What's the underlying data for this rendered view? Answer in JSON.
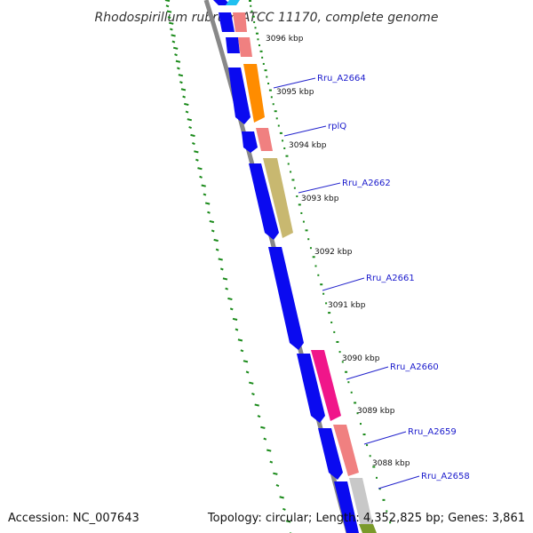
{
  "title": "Rhodospirillum rubrum ATCC 11170, complete genome",
  "footer": {
    "accession": "Accession: NC_007643",
    "summary": "Topology: circular; Length: 4,352,825 bp; Genes: 3,861"
  },
  "colors": {
    "backbone": "#888888",
    "forward_cds": "#0a0af0",
    "gc_skew_dashes": "#1a8a1a",
    "label_line": "#2222cc",
    "tick_dots": "#1a8a1a"
  },
  "kbp_ticks": [
    {
      "label": "3096 kbp"
    },
    {
      "label": "3095 kbp"
    },
    {
      "label": "3094 kbp"
    },
    {
      "label": "3093 kbp"
    },
    {
      "label": "3092 kbp"
    },
    {
      "label": "3091 kbp"
    },
    {
      "label": "3090 kbp"
    },
    {
      "label": "3089 kbp"
    },
    {
      "label": "3088 kbp"
    }
  ],
  "gene_labels": [
    {
      "label": "Rru_A2664"
    },
    {
      "label": "rplQ"
    },
    {
      "label": "Rru_A2662"
    },
    {
      "label": "Rru_A2661"
    },
    {
      "label": "Rru_A2660"
    },
    {
      "label": "Rru_A2659"
    },
    {
      "label": "Rru_A2658"
    }
  ],
  "feature_colors": {
    "cds_forward": "#0a0af0",
    "salmon": "#f08080",
    "orange": "#ff8c00",
    "khaki": "#c8b870",
    "magenta": "#f0168a",
    "light_gray": "#c8c8c8",
    "cyan": "#20c0f0"
  }
}
